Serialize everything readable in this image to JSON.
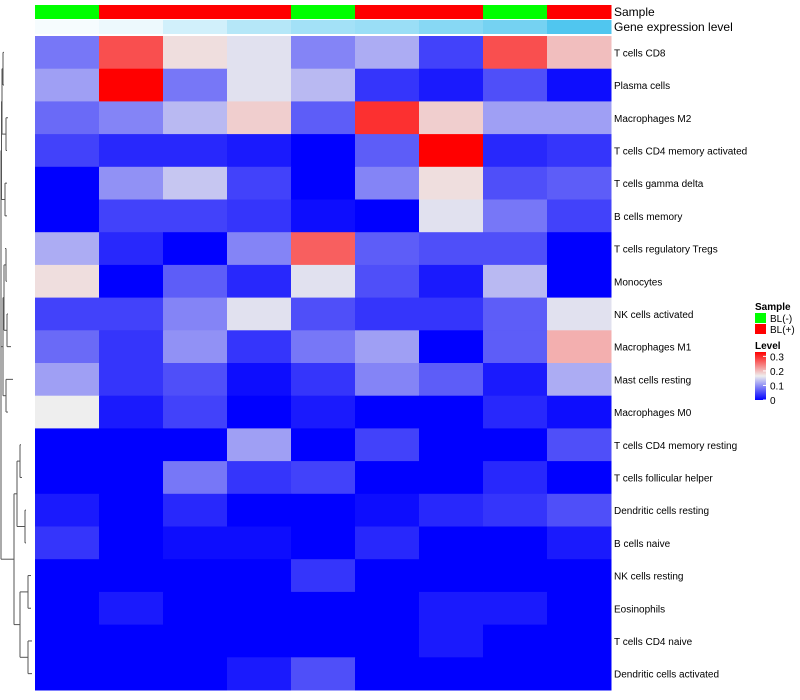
{
  "chart_data": {
    "type": "heatmap",
    "title": "",
    "annotation_tracks": [
      {
        "name": "Sample",
        "kind": "categorical",
        "values": [
          "BL(-)",
          "BL(+)",
          "BL(+)",
          "BL(+)",
          "BL(-)",
          "BL(+)",
          "BL(+)",
          "BL(-)",
          "BL(+)"
        ]
      },
      {
        "name": "Gene expression level",
        "kind": "continuous",
        "values": [
          0.05,
          0.1,
          0.25,
          0.4,
          0.5,
          0.55,
          0.65,
          0.75,
          0.95
        ]
      }
    ],
    "rows": [
      "T cells CD8",
      "Plasma cells",
      "Macrophages M2",
      "T cells CD4 memory activated",
      "T cells gamma delta",
      "B cells memory",
      "T cells regulatory  Tregs",
      "Monocytes",
      "NK cells activated",
      "Macrophages M1",
      "Mast cells resting",
      "Macrophages M0",
      "T cells CD4 memory resting",
      "T cells follicular helper",
      "Dendritic cells resting",
      "B cells naive",
      "NK cells resting",
      "Eosinophils",
      "T cells CD4 naive",
      "Dendritic cells activated"
    ],
    "values": [
      [
        0.09,
        0.28,
        0.19,
        0.17,
        0.1,
        0.13,
        0.05,
        0.28,
        0.21
      ],
      [
        0.12,
        0.33,
        0.09,
        0.17,
        0.14,
        0.04,
        0.02,
        0.06,
        0.01
      ],
      [
        0.08,
        0.1,
        0.14,
        0.2,
        0.07,
        0.3,
        0.2,
        0.12,
        0.12
      ],
      [
        0.05,
        0.03,
        0.03,
        0.02,
        0.0,
        0.07,
        0.33,
        0.03,
        0.04
      ],
      [
        0.0,
        0.11,
        0.15,
        0.05,
        0.0,
        0.1,
        0.19,
        0.06,
        0.07
      ],
      [
        0.0,
        0.05,
        0.05,
        0.04,
        0.01,
        0.0,
        0.17,
        0.09,
        0.05
      ],
      [
        0.13,
        0.03,
        0.0,
        0.1,
        0.27,
        0.07,
        0.06,
        0.06,
        0.0
      ],
      [
        0.19,
        0.0,
        0.07,
        0.03,
        0.17,
        0.06,
        0.02,
        0.14,
        0.0
      ],
      [
        0.05,
        0.05,
        0.1,
        0.17,
        0.06,
        0.04,
        0.04,
        0.07,
        0.17
      ],
      [
        0.08,
        0.04,
        0.11,
        0.04,
        0.09,
        0.12,
        0.0,
        0.07,
        0.22
      ],
      [
        0.12,
        0.04,
        0.06,
        0.01,
        0.04,
        0.1,
        0.07,
        0.02,
        0.13
      ],
      [
        0.18,
        0.02,
        0.05,
        0.0,
        0.02,
        0.0,
        0.0,
        0.03,
        0.01
      ],
      [
        0.0,
        0.0,
        0.0,
        0.12,
        0.0,
        0.05,
        0.0,
        0.0,
        0.06
      ],
      [
        0.0,
        0.0,
        0.09,
        0.04,
        0.05,
        0.0,
        0.0,
        0.03,
        0.0
      ],
      [
        0.02,
        0.0,
        0.03,
        0.0,
        0.0,
        0.01,
        0.03,
        0.04,
        0.06
      ],
      [
        0.04,
        0.0,
        0.01,
        0.01,
        0.0,
        0.03,
        0.0,
        0.0,
        0.02
      ],
      [
        0.0,
        0.0,
        0.0,
        0.0,
        0.04,
        0.0,
        0.0,
        0.0,
        0.0
      ],
      [
        0.0,
        0.02,
        0.0,
        0.0,
        0.0,
        0.0,
        0.02,
        0.02,
        0.0
      ],
      [
        0.0,
        0.0,
        0.0,
        0.0,
        0.0,
        0.0,
        0.02,
        0.0,
        0.0
      ],
      [
        0.0,
        0.0,
        0.0,
        0.02,
        0.06,
        0.0,
        0.0,
        0.0,
        0.0
      ]
    ],
    "color_scale": {
      "min": 0,
      "mid": 0.18,
      "max": 0.33,
      "low_color": "#0000ff",
      "mid_color": "#eeeeee",
      "high_color": "#ff0000"
    },
    "legends": {
      "sample": {
        "title": "Sample",
        "items": [
          {
            "label": "BL(-)",
            "color": "#00ff00"
          },
          {
            "label": "BL(+)",
            "color": "#ff0000"
          }
        ]
      },
      "level": {
        "title": "Level",
        "ticks": [
          {
            "label": "0.3",
            "value": 0.3
          },
          {
            "label": "0.2",
            "value": 0.2
          },
          {
            "label": "0.1",
            "value": 0.1
          },
          {
            "label": "0",
            "value": 0
          }
        ]
      }
    },
    "expression_scale": {
      "low_color": "#ffffff",
      "high_color": "#47c3ee"
    },
    "legend_position": "right"
  }
}
